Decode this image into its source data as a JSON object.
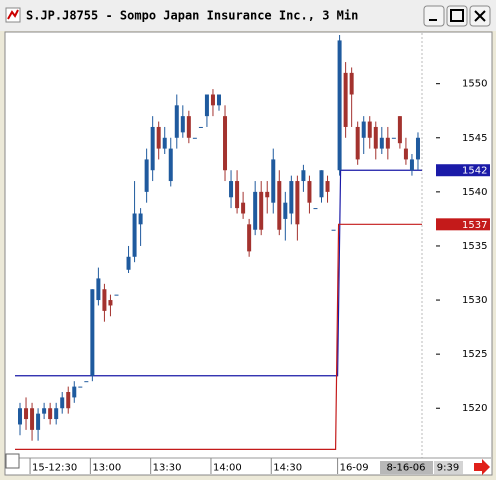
{
  "chart_data": {
    "type": "candlestick",
    "title": "S.JP.J8755 - Sompo Japan Insurance Inc., 3 Min",
    "up_color": "#1f5a9e",
    "down_color": "#a3322e",
    "open": [
      1518.5,
      1520,
      1520,
      1518,
      1519.5,
      1520,
      1519,
      1520,
      1521.5,
      1521,
      1522,
      1522.5,
      1523,
      1530,
      1531,
      1530,
      1530.5,
      null,
      1532.8,
      1534,
      1537,
      1540,
      1542,
      1546,
      1544,
      1541,
      1545,
      1545.5,
      1547,
      1545,
      1546,
      1547,
      1549,
      1548,
      1547,
      1539.5,
      1541,
      1539,
      1537,
      1536.5,
      1540,
      1540,
      1539,
      1541,
      1537.5,
      1538,
      1541,
      1541,
      1541,
      1538.5,
      1539.5,
      1541,
      1536.5,
      1542,
      1551,
      1551,
      1546,
      1545,
      1546.5,
      1546,
      1544,
      1545,
      1545,
      1547,
      1544,
      1542,
      1543
    ],
    "high": [
      1520.5,
      1521,
      1520.5,
      1520,
      1520.5,
      1520.5,
      1520.5,
      1521.5,
      1522,
      1522.5,
      1522,
      1522.5,
      1531,
      1533,
      1531.5,
      1530.5,
      1530.5,
      null,
      1535,
      1541,
      1538.5,
      1544,
      1547,
      1546.5,
      1546,
      1545,
      1549,
      1548,
      1547.5,
      1545,
      1546,
      1549,
      1549.5,
      1549,
      1548,
      1542,
      1542,
      1540,
      1537.5,
      1541,
      1541,
      1541,
      1544,
      1542,
      1540,
      1541.5,
      1541.5,
      1542.5,
      1541.5,
      1538.5,
      1542,
      1541.5,
      1536.5,
      1554.5,
      1552,
      1551.5,
      1546.5,
      1547,
      1547,
      1546.5,
      1546,
      1546,
      1545,
      1547,
      1545,
      1543.5,
      1545.5
    ],
    "low": [
      1517.5,
      1518,
      1517,
      1517,
      1519,
      1518.5,
      1518.5,
      1519.5,
      1519.5,
      1520.5,
      1522,
      1522.5,
      1522.5,
      1529.5,
      1528,
      1528.5,
      1530.5,
      null,
      1532.5,
      1533.5,
      1535,
      1539,
      1541,
      1543,
      1543.5,
      1540.5,
      1544,
      1545,
      1544.5,
      1545,
      1546,
      1546,
      1547,
      1547.5,
      1541,
      1538.5,
      1538,
      1537.5,
      1534,
      1536,
      1536,
      1538,
      1538,
      1536,
      1535.5,
      1537,
      1535.5,
      1540,
      1538,
      1538.5,
      1539,
      1539,
      1536.5,
      1541.5,
      1545,
      1546,
      1542.5,
      1543.5,
      1544,
      1543,
      1543.5,
      1543,
      1545,
      1544,
      1542.5,
      1541.5,
      1542
    ],
    "close": [
      1520,
      1519,
      1518,
      1519.5,
      1520,
      1519,
      1520,
      1521,
      1520,
      1522,
      1522,
      1522.5,
      1531,
      1532,
      1529,
      1529.5,
      1530.5,
      null,
      1534,
      1538,
      1538,
      1543,
      1546,
      1544,
      1545,
      1544,
      1548,
      1547,
      1545,
      1545,
      1546,
      1549,
      1548,
      1549,
      1542,
      1541,
      1538.5,
      1538,
      1534.5,
      1540,
      1536.5,
      1539.5,
      1543,
      1536.5,
      1539,
      1541,
      1537,
      1542,
      1539,
      1538.5,
      1542,
      1540,
      1536.5,
      1554,
      1546,
      1549,
      1543,
      1546.5,
      1545,
      1544,
      1545,
      1544,
      1545,
      1544.5,
      1543,
      1543,
      1545
    ],
    "ylim": [
      1515.4,
      1554.5
    ],
    "yticks": [
      1520,
      1525,
      1530,
      1535,
      1540,
      1545,
      1550
    ],
    "xticks": [
      {
        "value": 2,
        "label": "15-12:30"
      },
      {
        "value": 12,
        "label": "13:00"
      },
      {
        "value": 22,
        "label": "13:30"
      },
      {
        "value": 32,
        "label": "14:00"
      },
      {
        "value": 42,
        "label": "14:30"
      },
      {
        "value": 53,
        "label": "16-09"
      }
    ],
    "level_lines": [
      {
        "color": "#1a1aa8",
        "values": [
          1523,
          1542
        ]
      },
      {
        "color": "#c41a1a",
        "values": [
          1516.2,
          1537
        ]
      }
    ],
    "date": "8-16-06",
    "time": "9:39"
  }
}
